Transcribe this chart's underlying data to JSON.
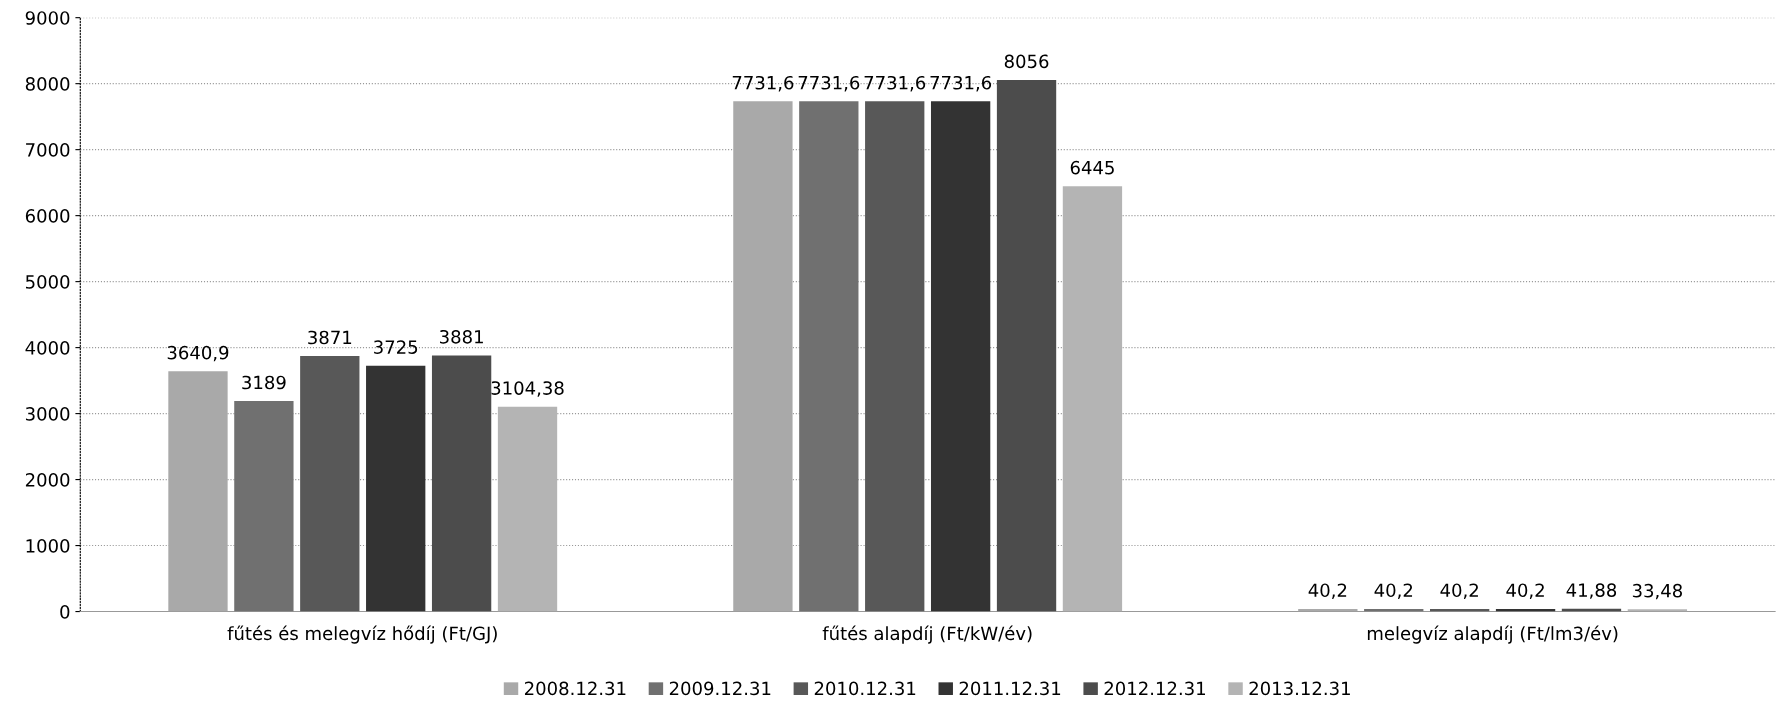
{
  "chart_data": {
    "type": "bar",
    "categories": [
      "fűtés és melegvíz hődíj (Ft/GJ)",
      "fűtés alapdíj (Ft/kW/év)",
      "melegvíz alapdíj (Ft/lm3/év)"
    ],
    "series": [
      {
        "name": "2008.12.31",
        "color": "#a9a9a9",
        "values": [
          3640.9,
          7731.6,
          40.2
        ],
        "value_labels": [
          "3640,9",
          "7731,6",
          "40,2"
        ]
      },
      {
        "name": "2009.12.31",
        "color": "#707070",
        "values": [
          3189,
          7731.6,
          40.2
        ],
        "value_labels": [
          "3189",
          "7731,6",
          "40,2"
        ]
      },
      {
        "name": "2010.12.31",
        "color": "#585858",
        "values": [
          3871,
          7731.6,
          40.2
        ],
        "value_labels": [
          "3871",
          "7731,6",
          "40,2"
        ]
      },
      {
        "name": "2011.12.31",
        "color": "#333333",
        "values": [
          3725,
          7731.6,
          40.2
        ],
        "value_labels": [
          "3725",
          "7731,6",
          "40,2"
        ]
      },
      {
        "name": "2012.12.31",
        "color": "#4c4c4c",
        "values": [
          3881,
          8056,
          41.88
        ],
        "value_labels": [
          "3881",
          "8056",
          "41,88"
        ]
      },
      {
        "name": "2013.12.31",
        "color": "#b4b4b4",
        "values": [
          3104.38,
          6445,
          33.48
        ],
        "value_labels": [
          "3104,38",
          "6445",
          "33,48"
        ]
      }
    ],
    "ylim": [
      0,
      9000
    ],
    "yticks": [
      0,
      1000,
      2000,
      3000,
      4000,
      5000,
      6000,
      7000,
      8000,
      9000
    ],
    "grid": "y",
    "legend": "bottom"
  }
}
